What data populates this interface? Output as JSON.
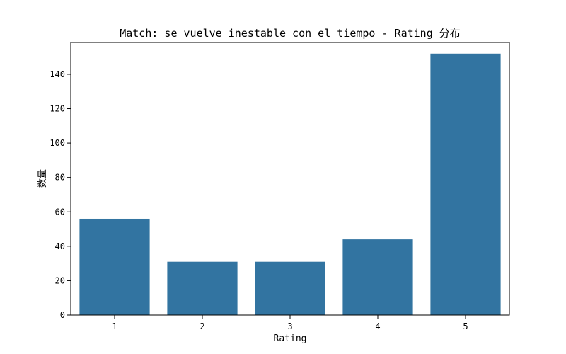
{
  "chart_data": {
    "type": "bar",
    "title": "Match: se vuelve inestable con el tiempo - Rating 分布",
    "xlabel": "Rating",
    "ylabel": "数量",
    "categories": [
      "1",
      "2",
      "3",
      "4",
      "5"
    ],
    "values": [
      56,
      31,
      31,
      44,
      152
    ],
    "ylim": [
      0,
      158.5
    ],
    "yticks": [
      0,
      20,
      40,
      60,
      80,
      100,
      120,
      140
    ],
    "grid": false,
    "bar_color": "#3274a1"
  }
}
